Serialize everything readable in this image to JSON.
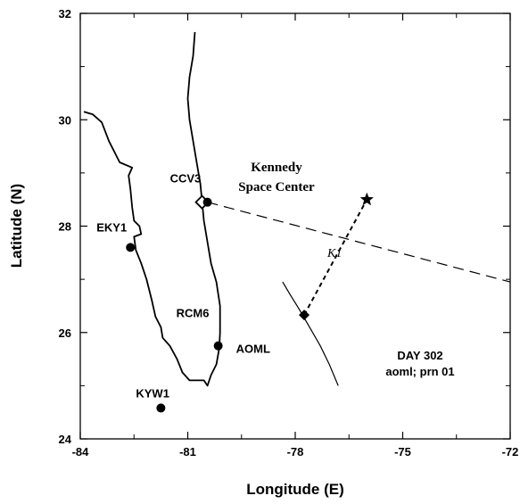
{
  "chart_data": {
    "type": "scatter",
    "xlabel": "Longitude (E)",
    "ylabel": "Latitude (N)",
    "xlim": [
      -84,
      -72
    ],
    "ylim": [
      24,
      32
    ],
    "x_ticks": [
      -84,
      -81,
      -78,
      -75,
      -72
    ],
    "y_ticks": [
      24,
      26,
      28,
      30,
      32
    ],
    "x_tick_labels": [
      "-84",
      "-81",
      "-78",
      "-75",
      "-72"
    ],
    "y_tick_labels": [
      "24",
      "26",
      "28",
      "30",
      "32"
    ],
    "grid": false,
    "coastline": [
      [
        -80.8,
        31.65
      ],
      [
        -80.85,
        31.2
      ],
      [
        -80.95,
        30.8
      ],
      [
        -81.0,
        30.4
      ],
      [
        -80.95,
        30.0
      ],
      [
        -80.85,
        29.6
      ],
      [
        -80.75,
        29.2
      ],
      [
        -80.65,
        28.8
      ],
      [
        -80.6,
        28.45
      ],
      [
        -80.55,
        28.1
      ],
      [
        -80.45,
        27.7
      ],
      [
        -80.35,
        27.3
      ],
      [
        -80.2,
        26.95
      ],
      [
        -80.1,
        26.5
      ],
      [
        -80.1,
        26.0
      ],
      [
        -80.12,
        25.7
      ],
      [
        -80.2,
        25.4
      ],
      [
        -80.35,
        25.2
      ],
      [
        -80.45,
        25.0
      ],
      [
        -80.55,
        25.1
      ],
      [
        -80.95,
        25.1
      ],
      [
        -81.15,
        25.25
      ],
      [
        -81.3,
        25.5
      ],
      [
        -81.5,
        25.75
      ],
      [
        -81.7,
        25.9
      ],
      [
        -81.75,
        26.1
      ],
      [
        -81.9,
        26.3
      ],
      [
        -82.0,
        26.6
      ],
      [
        -82.15,
        27.0
      ],
      [
        -82.3,
        27.3
      ],
      [
        -82.45,
        27.55
      ],
      [
        -82.5,
        27.8
      ],
      [
        -82.3,
        27.85
      ],
      [
        -82.35,
        28.0
      ],
      [
        -82.5,
        28.1
      ],
      [
        -82.55,
        28.35
      ],
      [
        -82.6,
        28.7
      ],
      [
        -82.65,
        28.95
      ],
      [
        -82.55,
        29.1
      ],
      [
        -82.9,
        29.2
      ],
      [
        -83.2,
        29.6
      ],
      [
        -83.4,
        29.95
      ],
      [
        -83.65,
        30.1
      ],
      [
        -83.9,
        30.15
      ]
    ],
    "stations": [
      {
        "name": "CCV3",
        "lon": -80.6,
        "lat": 28.45,
        "marker": "diamond-open",
        "label_dx": -36,
        "label_dy": -22
      },
      {
        "name": "",
        "lon": -80.45,
        "lat": 28.45,
        "marker": "circle"
      },
      {
        "name": "EKY1",
        "lon": -82.6,
        "lat": 27.6,
        "marker": "circle",
        "label_dx": -38,
        "label_dy": -18
      },
      {
        "name": "RCM6",
        "lon": -80.15,
        "lat": 25.75,
        "marker": "circle",
        "label_dx": -47,
        "label_dy": -32
      },
      {
        "name": "AOML",
        "lon": -80.1,
        "lat": 25.72,
        "marker": "none",
        "label_dx": 18,
        "label_dy": 6
      },
      {
        "name": "KYW1",
        "lon": -81.75,
        "lat": 24.58,
        "marker": "circle",
        "label_dx": -28,
        "label_dy": -12
      }
    ],
    "ksc_label": [
      "Kennedy",
      "Space Center"
    ],
    "ray_line": [
      [
        -80.45,
        28.45
      ],
      [
        -72.0,
        26.95
      ]
    ],
    "k1_line": [
      [
        -77.75,
        26.33
      ],
      [
        -76.0,
        28.5
      ]
    ],
    "k1_label": "K1",
    "star": {
      "lon": -76.0,
      "lat": 28.5
    },
    "diamond_filled": {
      "lon": -77.75,
      "lat": 26.33
    },
    "track": [
      [
        -78.35,
        26.95
      ],
      [
        -78.15,
        26.72
      ],
      [
        -77.9,
        26.45
      ],
      [
        -77.6,
        26.1
      ],
      [
        -77.3,
        25.75
      ],
      [
        -77.05,
        25.4
      ],
      [
        -76.8,
        25.0
      ]
    ],
    "day_label": [
      "DAY 302",
      "aoml; prn 01"
    ]
  }
}
